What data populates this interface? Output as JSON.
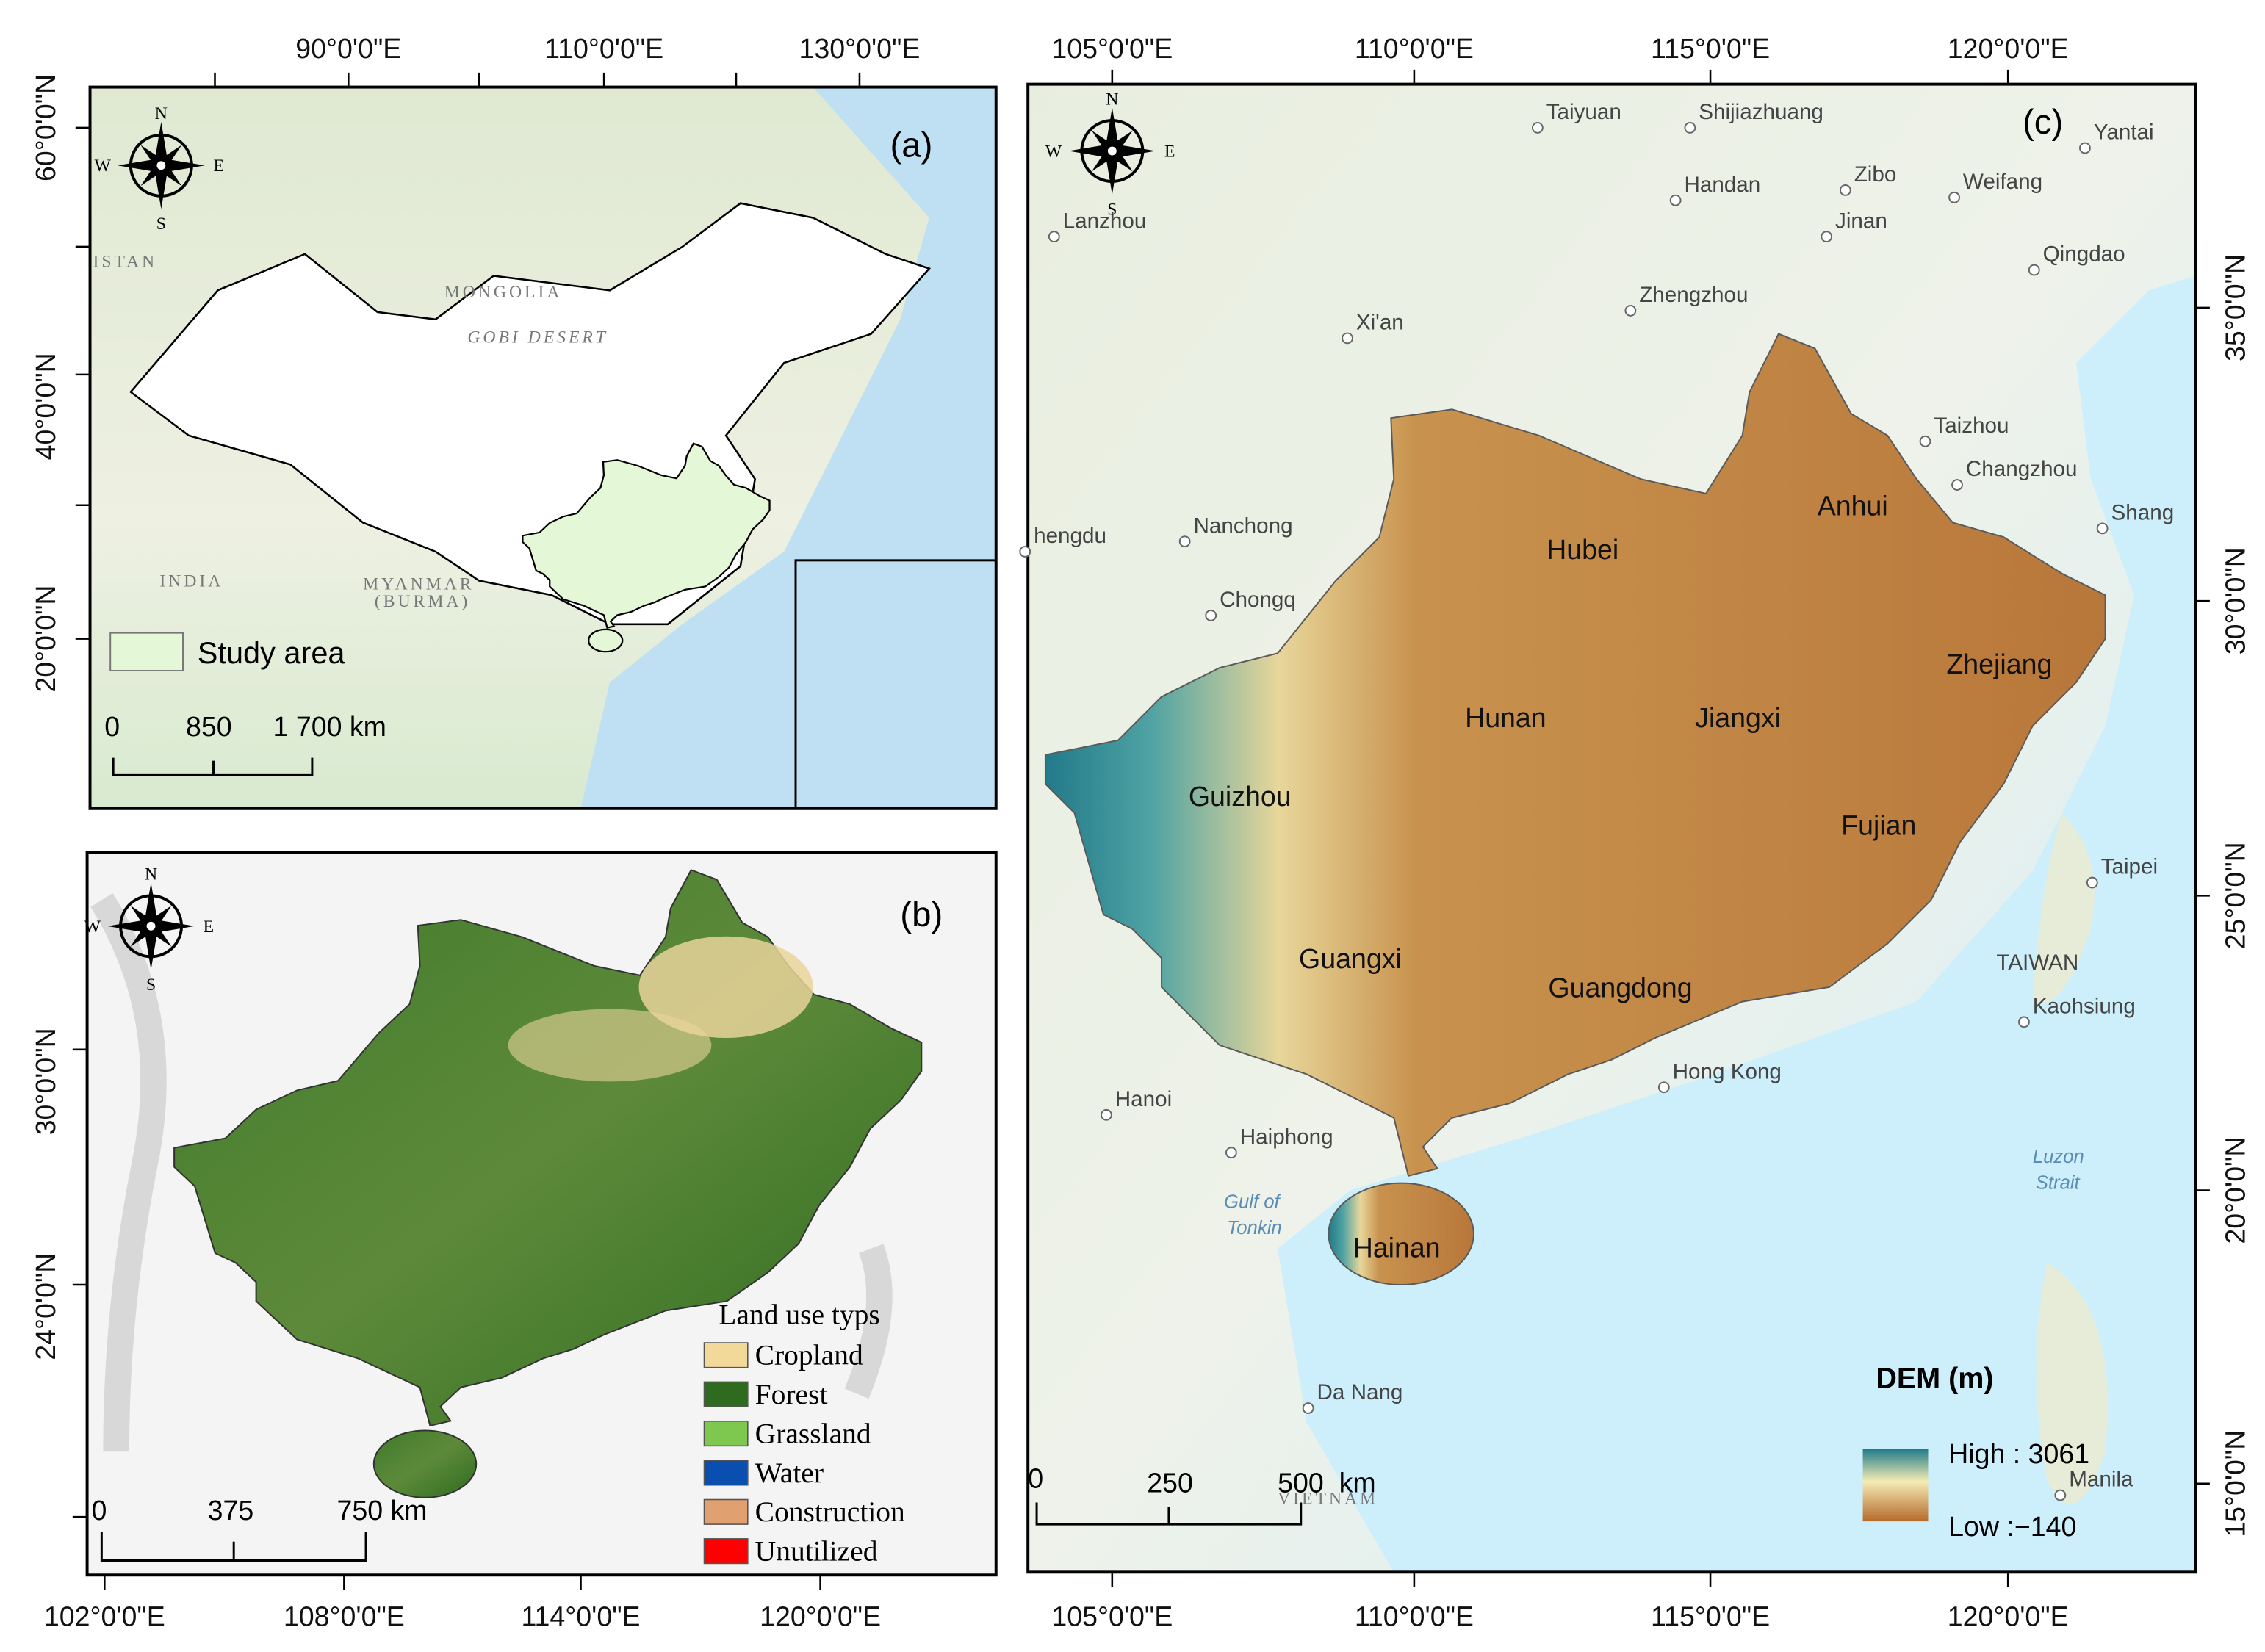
{
  "compass": {
    "n": "N",
    "s": "S",
    "e": "E",
    "w": "W"
  },
  "panels": [
    {
      "label": "(a)",
      "top_ticks": [
        "90°0'0\"E",
        "110°0'0\"E",
        "130°0'0\"E"
      ],
      "left_ticks": [
        "60°0'0\"N",
        "40°0'0\"N",
        "20°0'0\"N"
      ],
      "map_labels": [
        "MONGOLIA",
        "GOBI DESERT",
        "INDIA",
        "MYANMAR",
        "(BURMA)",
        "ISTAN"
      ],
      "legend": "Study area",
      "scale_bar": [
        "0",
        "850",
        "1 700 km"
      ]
    },
    {
      "label": "(b)",
      "bottom_ticks": [
        "102°0'0\"E",
        "108°0'0\"E",
        "114°0'0\"E",
        "120°0'0\"E"
      ],
      "left_ticks": [
        "30°0'0\"N",
        "24°0'0\"N"
      ],
      "legend_title": "Land use typs",
      "legend": [
        {
          "label": "Cropland",
          "color": "#f2d99a"
        },
        {
          "label": "Forest",
          "color": "#2e6b1f"
        },
        {
          "label": "Grassland",
          "color": "#7ec850"
        },
        {
          "label": "Water",
          "color": "#0a4fb0"
        },
        {
          "label": "Construction",
          "color": "#e0a070"
        },
        {
          "label": "Unutilized",
          "color": "#ff0000"
        }
      ],
      "scale_bar": [
        "0",
        "375",
        "750 km"
      ]
    },
    {
      "label": "(c)",
      "top_ticks": [
        "105°0'0\"E",
        "110°0'0\"E",
        "115°0'0\"E",
        "120°0'0\"E"
      ],
      "bottom_ticks": [
        "105°0'0\"E",
        "110°0'0\"E",
        "115°0'0\"E",
        "120°0'0\"E"
      ],
      "right_ticks": [
        "35°0'0\"N",
        "30°0'0\"N",
        "25°0'0\"N",
        "20°0'0\"N",
        "15°0'0\"N"
      ],
      "provinces": [
        "Hubei",
        "Anhui",
        "Hunan",
        "Jiangxi",
        "Zhejiang",
        "Guizhou",
        "Fujian",
        "Guangxi",
        "Guangdong",
        "Hainan"
      ],
      "cities": [
        "Taiyuan",
        "Shijiazhuang",
        "Yantai",
        "Lanzhou",
        "Handan",
        "Zibo",
        "Weifang",
        "Jinan",
        "Qingdao",
        "Xi'an",
        "Zhengzhou",
        "Taizhou",
        "Changzhou",
        "Nanchong",
        "hengdu",
        "Chongq",
        "Taipei",
        "Kaohsiung",
        "Hong Kong",
        "Hanoi",
        "Haiphong",
        "Da Nang",
        "Manila",
        "Shang"
      ],
      "region_labels": [
        "TAIWAN",
        "VIETNAM",
        "Gulf of",
        "Tonkin",
        "Luzon",
        "Strait"
      ],
      "legend_title": "DEM (m)",
      "legend_high": "High : 3061",
      "legend_low": "Low :−140",
      "scale_bar": [
        "0",
        "250",
        "500  km"
      ]
    }
  ]
}
